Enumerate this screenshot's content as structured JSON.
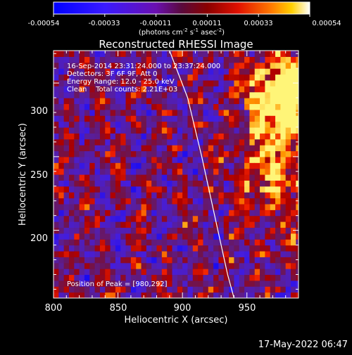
{
  "colorbar": {
    "ticks": [
      "-0.00054",
      "-0.00033",
      "-0.00011",
      "0.00011",
      "0.00033",
      "0.00054"
    ],
    "unit": {
      "open": "(photons cm",
      "exp1": "-2",
      "s": " s",
      "exp2": "-1",
      "asec": " asec",
      "exp3": "-2",
      "close": ")"
    }
  },
  "chart": {
    "title": "Reconstructed RHESSI Image",
    "xlabel": "Heliocentric X (arcsec)",
    "ylabel": "Heliocentric Y (arcsec)",
    "xticks": [
      "800",
      "850",
      "900",
      "950"
    ],
    "yticks": [
      "200",
      "250",
      "300"
    ]
  },
  "annotations": {
    "line1": "16-Sep-2014 23:31:24.000 to 23:37:24.000",
    "line2": "Detectors: 3F 6F 9F, Att 0",
    "line3": "Energy Range: 12.0 - 25.0 keV",
    "line4": "Clean    Total counts: 2.21E+03",
    "peak": "Position of Peak = [980,292]"
  },
  "footer": {
    "timestamp": "17-May-2022 06:47"
  },
  "chart_data": {
    "type": "heatmap",
    "title": "Reconstructed RHESSI Image",
    "xlabel": "Heliocentric X (arcsec)",
    "ylabel": "Heliocentric Y (arcsec)",
    "xlim": [
      800,
      990
    ],
    "ylim": [
      154,
      322
    ],
    "xticks": [
      800,
      850,
      900,
      950
    ],
    "yticks": [
      200,
      250,
      300
    ],
    "colorbar_range": [
      -0.00054,
      0.00054
    ],
    "colorbar_ticks": [
      -0.00054,
      -0.00033,
      -0.00011,
      0.00011,
      0.00033,
      0.00054
    ],
    "peak_position": [
      980,
      292
    ],
    "limb_curve": [
      [
        890,
        322
      ],
      [
        904,
        290
      ],
      [
        915,
        250
      ],
      [
        925,
        210
      ],
      [
        935,
        170
      ],
      [
        940,
        154
      ]
    ]
  }
}
